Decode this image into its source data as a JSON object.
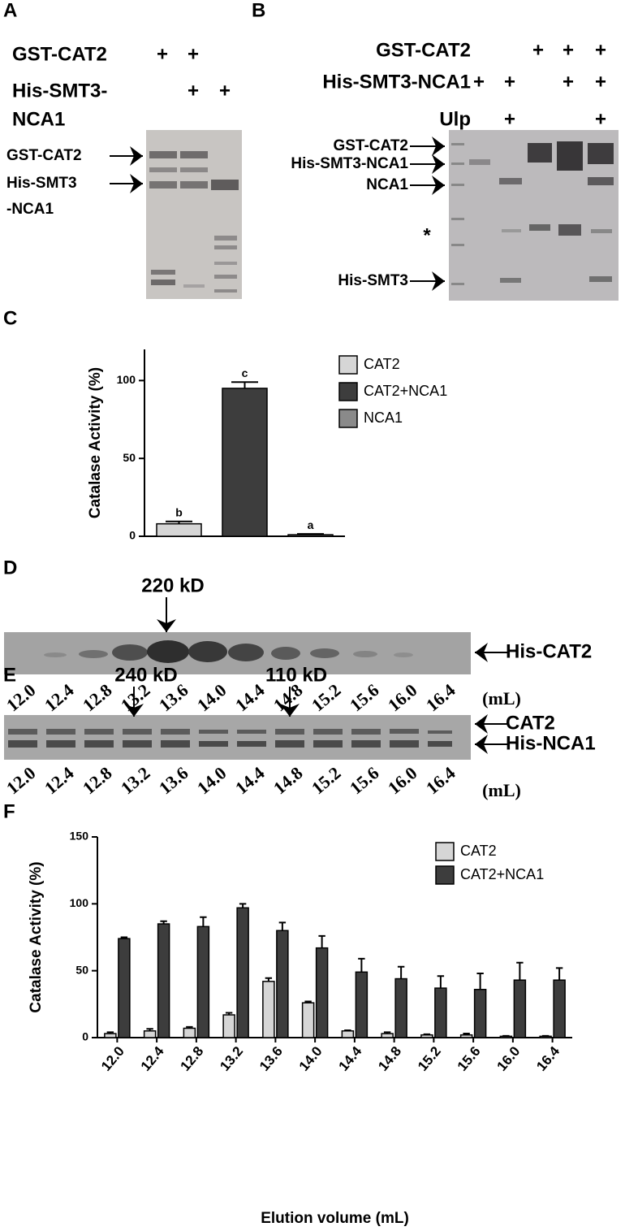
{
  "panels": [
    {
      "label": "A",
      "rows": [
        {
          "name": "GST-CAT2",
          "lanes": [
            "+",
            "+",
            null
          ]
        },
        {
          "name": "His-SMT3-",
          "lanes": [
            null,
            "+",
            "+"
          ]
        },
        {
          "name": "NCA1",
          "lanes": [
            null,
            null,
            null
          ]
        }
      ],
      "bands": [
        "GST-CAT2",
        "His-SMT3",
        "-NCA1"
      ]
    },
    {
      "label": "B",
      "rows": [
        {
          "name": "GST-CAT2",
          "lanes": [
            null,
            null,
            "+",
            "+",
            "+"
          ]
        },
        {
          "name": "His-SMT3-NCA1",
          "lanes": [
            "+",
            "+",
            null,
            "+",
            "+"
          ]
        },
        {
          "name": "Ulp",
          "lanes": [
            null,
            "+",
            null,
            null,
            "+"
          ]
        }
      ],
      "bands": [
        "GST-CAT2",
        "His-SMT3-NCA1",
        "NCA1",
        "*",
        "His-SMT3"
      ]
    },
    {
      "label": "C"
    },
    {
      "label": "D",
      "sizes": [
        "220 kD"
      ],
      "bands": [
        "His-CAT2"
      ],
      "lanes": [
        "12.0",
        "12.4",
        "12.8",
        "13.2",
        "13.6",
        "14.0",
        "14.4",
        "14.8",
        "15.2",
        "15.6",
        "16.0",
        "16.4"
      ],
      "unit": "(mL)"
    },
    {
      "label": "E",
      "sizes": [
        "240 kD",
        "110 kD"
      ],
      "bands": [
        "CAT2",
        "His-NCA1"
      ],
      "lanes": [
        "12.0",
        "12.4",
        "12.8",
        "13.2",
        "13.6",
        "14.0",
        "14.4",
        "14.8",
        "15.2",
        "15.6",
        "16.0",
        "16.4"
      ],
      "unit": "(mL)"
    },
    {
      "label": "F"
    }
  ],
  "chart_data": [
    {
      "type": "bar",
      "y_label": "Catalase Activity (%)",
      "categories": [
        null
      ],
      "series": [
        {
          "name": "CAT2",
          "color": "#d6d6d6",
          "values": [
            8
          ],
          "errors": [
            1.5
          ],
          "letters": [
            "b"
          ]
        },
        {
          "name": "CAT2+NCA1",
          "color": "#3d3d3d",
          "values": [
            95
          ],
          "errors": [
            4
          ],
          "letters": [
            "c"
          ]
        },
        {
          "name": "NCA1",
          "color": "#8a8a8a",
          "values": [
            1
          ],
          "errors": [
            0.5
          ],
          "letters": [
            "a"
          ]
        }
      ],
      "ylim": [
        0,
        120
      ],
      "yticks": [
        0,
        50,
        100
      ]
    },
    {
      "type": "bar",
      "y_label": "Catalase Activity (%)",
      "x_label": "Elution volume (mL)",
      "categories": [
        "12.0",
        "12.4",
        "12.8",
        "13.2",
        "13.6",
        "14.0",
        "14.4",
        "14.8",
        "15.2",
        "15.6",
        "16.0",
        "16.4"
      ],
      "series": [
        {
          "name": "CAT2",
          "color": "#d6d6d6",
          "values": [
            3,
            5,
            7,
            17,
            42,
            26,
            5,
            3,
            2,
            2,
            1,
            1
          ],
          "errors": [
            1,
            1.5,
            1,
            1.5,
            2.5,
            1,
            0.5,
            1,
            0.5,
            1,
            0.3,
            0.3
          ]
        },
        {
          "name": "CAT2+NCA1",
          "color": "#3d3d3d",
          "values": [
            74,
            85,
            83,
            97,
            80,
            67,
            49,
            44,
            37,
            36,
            43,
            43
          ],
          "errors": [
            1,
            2,
            7,
            3,
            6,
            9,
            10,
            9,
            9,
            12,
            13,
            9
          ]
        }
      ],
      "ylim": [
        0,
        150
      ],
      "yticks": [
        0,
        50,
        100,
        150
      ]
    }
  ]
}
